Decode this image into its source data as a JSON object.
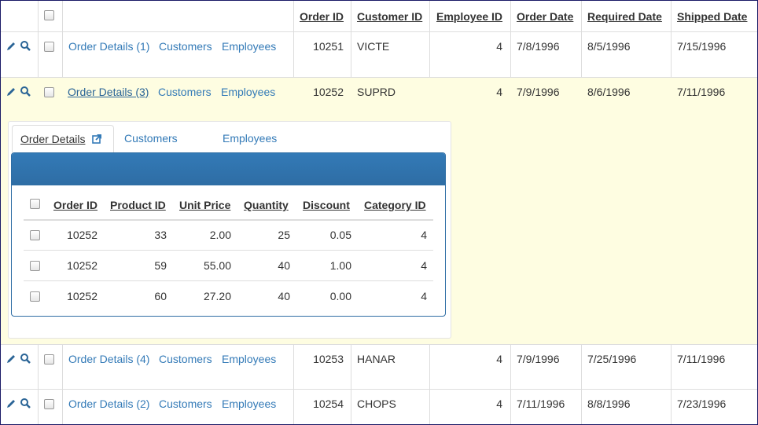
{
  "main_table": {
    "headers": [
      "Order ID",
      "Customer ID",
      "Employee ID",
      "Order Date",
      "Required Date",
      "Shipped Date"
    ],
    "rows": [
      {
        "links": [
          "Order Details (1)",
          "Customers",
          "Employees"
        ],
        "cells": [
          10251,
          "VICTE",
          4,
          "7/8/1996",
          "8/5/1996",
          "7/15/1996"
        ]
      },
      {
        "links": [
          "Order Details (3)",
          "Customers",
          "Employees"
        ],
        "cells": [
          10252,
          "SUPRD",
          4,
          "7/9/1996",
          "8/6/1996",
          "7/11/1996"
        ]
      },
      {
        "links": [
          "Order Details (4)",
          "Customers",
          "Employees"
        ],
        "cells": [
          10253,
          "HANAR",
          4,
          "7/9/1996",
          "7/25/1996",
          "7/11/1996"
        ]
      },
      {
        "links": [
          "Order Details (2)",
          "Customers",
          "Employees"
        ],
        "cells": [
          10254,
          "CHOPS",
          4,
          "7/11/1996",
          "8/8/1996",
          "7/23/1996"
        ]
      }
    ]
  },
  "detail": {
    "tabs": [
      "Order Details",
      "Customers",
      "Employees"
    ],
    "headers": [
      "Order ID",
      "Product ID",
      "Unit Price",
      "Quantity",
      "Discount",
      "Category ID"
    ],
    "rows": [
      [
        10252,
        33,
        "2.00",
        25,
        "0.05",
        4
      ],
      [
        10252,
        59,
        "55.00",
        40,
        "1.00",
        4
      ],
      [
        10252,
        60,
        "27.20",
        40,
        "0.00",
        4
      ]
    ]
  }
}
